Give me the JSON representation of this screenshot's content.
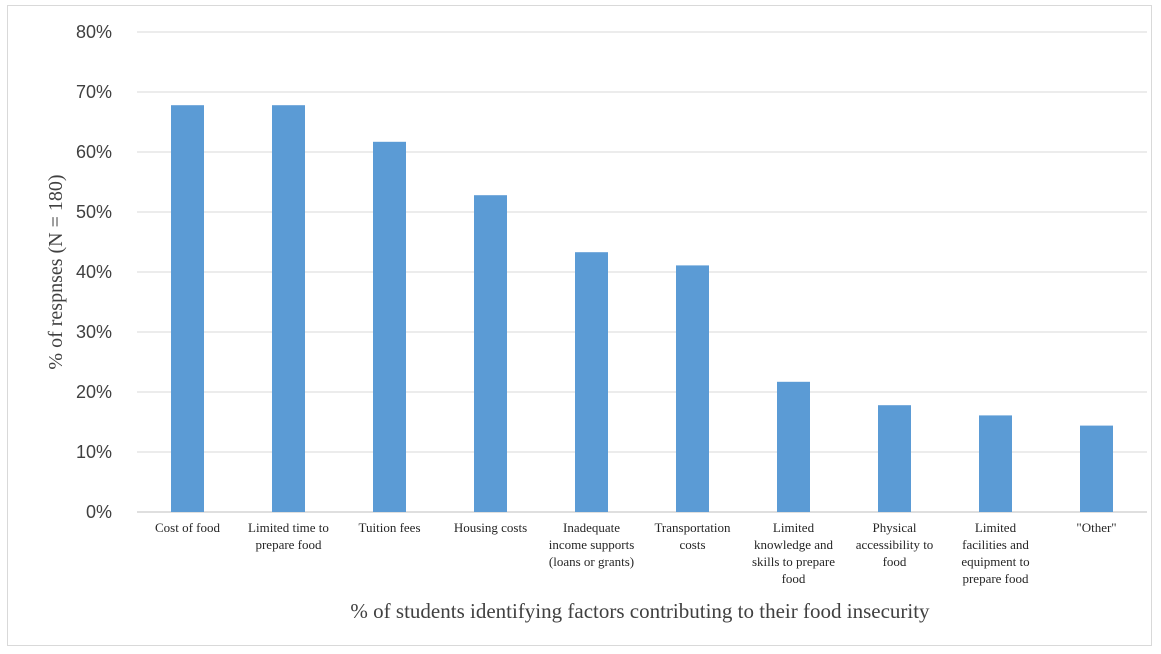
{
  "chart_data": {
    "type": "bar",
    "title": "",
    "xlabel": "% of students identifying factors contributing to their food insecurity",
    "ylabel": "% of respnses (N = 180)",
    "ylim": [
      0,
      80
    ],
    "yticks": [
      "0%",
      "10%",
      "20%",
      "30%",
      "40%",
      "50%",
      "60%",
      "70%",
      "80%"
    ],
    "grid": true,
    "legend": "none",
    "bar_color": "#5b9bd5",
    "categories": [
      "Cost of food",
      "Limited time to prepare food",
      "Tuition fees",
      "Housing costs",
      "Inadequate income supports (loans or grants)",
      "Transportation costs",
      "Limited knowledge and skills to prepare food",
      "Physical accessibility to food",
      "Limited facilities and equipment to prepare food",
      "\"Other\""
    ],
    "category_lines": [
      [
        "Cost of food"
      ],
      [
        "Limited time to",
        "prepare food"
      ],
      [
        "Tuition fees"
      ],
      [
        "Housing costs"
      ],
      [
        "Inadequate",
        "income supports",
        "(loans or grants)"
      ],
      [
        "Transportation",
        "costs"
      ],
      [
        "Limited",
        "knowledge and",
        "skills to prepare",
        "food"
      ],
      [
        "Physical",
        "accessibility to",
        "food"
      ],
      [
        "Limited",
        "facilities and",
        "equipment to",
        "prepare food"
      ],
      [
        "\"Other\""
      ]
    ],
    "values": [
      67.8,
      67.8,
      61.7,
      52.8,
      43.3,
      41.1,
      21.7,
      17.8,
      16.1,
      14.4
    ]
  }
}
